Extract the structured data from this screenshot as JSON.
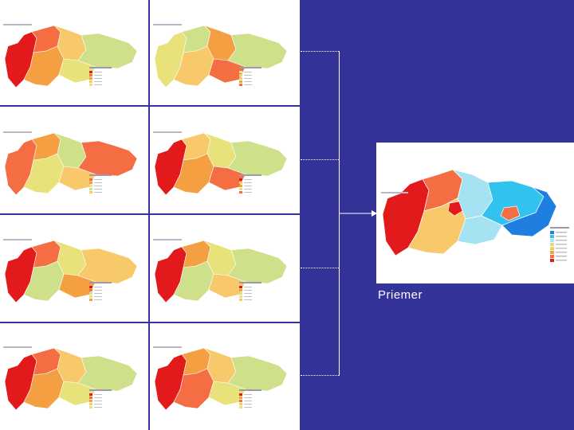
{
  "caption": "Priemer",
  "colors": {
    "background": "#333399",
    "red": "#e31a1c",
    "orange_red": "#f46d43",
    "orange": "#f4a042",
    "light_orange": "#f7c96a",
    "yellow": "#e8e27a",
    "light_green": "#cfe08a",
    "light_blue": "#a6e3f2",
    "cyan": "#31c3ee",
    "blue": "#1f7fe0"
  },
  "panels": [
    {
      "id": "map-1",
      "palette": [
        "#e31a1c",
        "#f46d43",
        "#f4a042",
        "#f7c96a",
        "#e8e27a",
        "#cfe08a"
      ]
    },
    {
      "id": "map-2",
      "palette": [
        "#e8e27a",
        "#cfe08a",
        "#f7c96a",
        "#f4a042",
        "#f46d43",
        "#cfe08a"
      ]
    },
    {
      "id": "map-3",
      "palette": [
        "#f46d43",
        "#f4a042",
        "#e8e27a",
        "#cfe08a",
        "#f7c96a",
        "#f46d43"
      ]
    },
    {
      "id": "map-4",
      "palette": [
        "#e31a1c",
        "#f7c96a",
        "#f4a042",
        "#e8e27a",
        "#f46d43",
        "#cfe08a"
      ]
    },
    {
      "id": "map-5",
      "palette": [
        "#e31a1c",
        "#f46d43",
        "#cfe08a",
        "#e8e27a",
        "#f4a042",
        "#f7c96a"
      ]
    },
    {
      "id": "map-6",
      "palette": [
        "#e31a1c",
        "#f4a042",
        "#cfe08a",
        "#e8e27a",
        "#f7c96a",
        "#cfe08a"
      ]
    },
    {
      "id": "map-7",
      "palette": [
        "#e31a1c",
        "#f46d43",
        "#f4a042",
        "#f7c96a",
        "#e8e27a",
        "#cfe08a"
      ]
    },
    {
      "id": "map-8",
      "palette": [
        "#e31a1c",
        "#f4a042",
        "#f46d43",
        "#f7c96a",
        "#e8e27a",
        "#cfe08a"
      ]
    }
  ]
}
